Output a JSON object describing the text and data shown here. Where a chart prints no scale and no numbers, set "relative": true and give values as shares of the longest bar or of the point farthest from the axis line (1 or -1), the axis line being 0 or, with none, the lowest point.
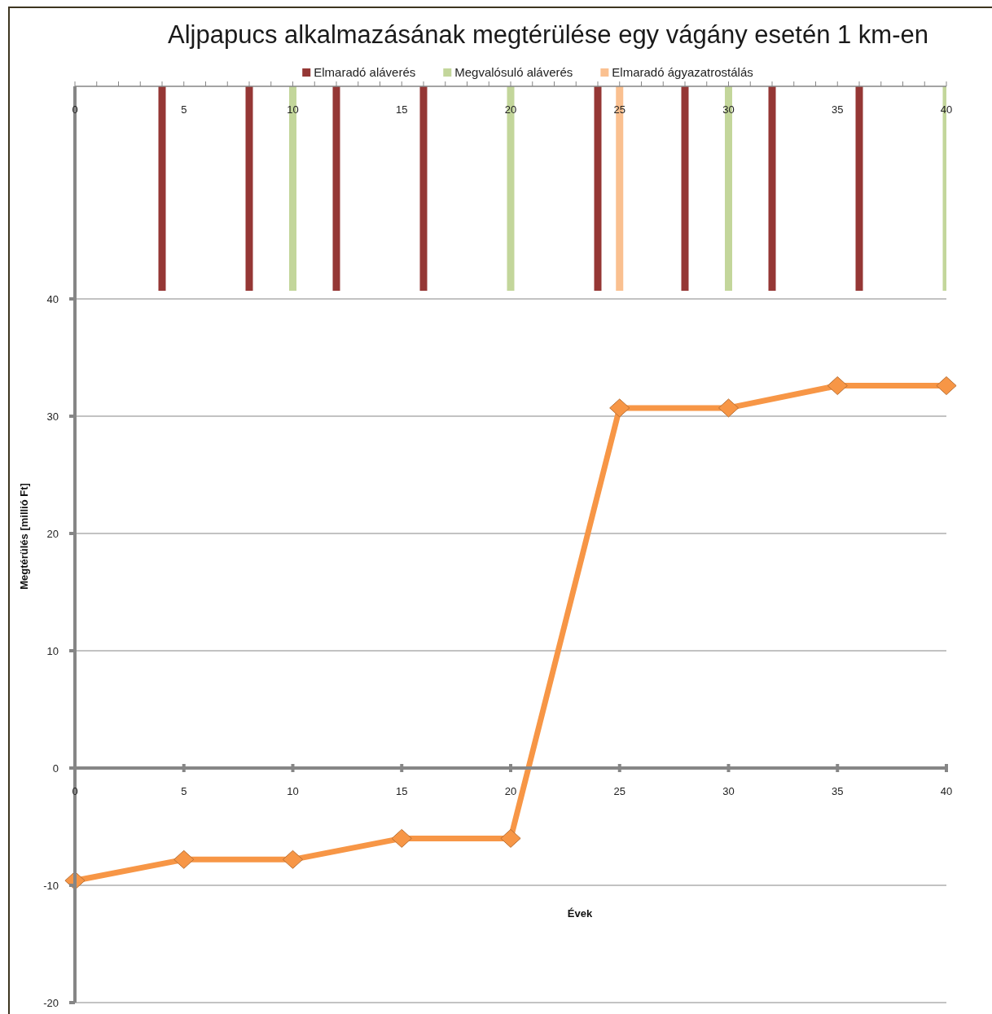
{
  "chart_data": [
    {
      "type": "bar",
      "title": "Aljpapucs alkalmazásának megtérülése egy vágány esetén 1 km-en",
      "relative": true,
      "legend": "top",
      "xlim": [
        0,
        40
      ],
      "xticks": [
        0,
        {
          "value": 1,
          "label": null
        },
        {
          "value": 2,
          "label": null
        },
        {
          "value": 3,
          "label": null
        },
        {
          "value": 4,
          "label": null
        },
        5,
        {
          "value": 6,
          "label": null
        },
        {
          "value": 7,
          "label": null
        },
        {
          "value": 8,
          "label": null
        },
        {
          "value": 9,
          "label": null
        },
        10,
        {
          "value": 11,
          "label": null
        },
        {
          "value": 12,
          "label": null
        },
        {
          "value": 13,
          "label": null
        },
        {
          "value": 14,
          "label": null
        },
        15,
        {
          "value": 16,
          "label": null
        },
        {
          "value": 17,
          "label": null
        },
        {
          "value": 18,
          "label": null
        },
        {
          "value": 19,
          "label": null
        },
        20,
        {
          "value": 21,
          "label": null
        },
        {
          "value": 22,
          "label": null
        },
        {
          "value": 23,
          "label": null
        },
        {
          "value": 24,
          "label": null
        },
        25,
        {
          "value": 26,
          "label": null
        },
        {
          "value": 27,
          "label": null
        },
        {
          "value": 28,
          "label": null
        },
        {
          "value": 29,
          "label": null
        },
        30,
        {
          "value": 31,
          "label": null
        },
        {
          "value": 32,
          "label": null
        },
        {
          "value": 33,
          "label": null
        },
        {
          "value": 34,
          "label": null
        },
        35,
        {
          "value": 36,
          "label": null
        },
        {
          "value": 37,
          "label": null
        },
        {
          "value": 38,
          "label": null
        },
        {
          "value": 39,
          "label": null
        },
        40
      ],
      "series": [
        {
          "name": "Elmaradó aláverés",
          "color": "#953735",
          "x": [
            4,
            8,
            12,
            16,
            24,
            28,
            32,
            36
          ],
          "values": [
            1,
            1,
            1,
            1,
            1,
            1,
            1,
            1
          ]
        },
        {
          "name": "Megvalósuló aláverés",
          "color": "#c3d69b",
          "x": [
            10,
            20,
            30,
            40
          ],
          "values": [
            1,
            1,
            1,
            1
          ]
        },
        {
          "name": "Elmaradó ágyazatrostálás",
          "color": "#fac090",
          "x": [
            25
          ],
          "values": [
            1
          ]
        }
      ]
    },
    {
      "type": "line",
      "xlabel": "Évek",
      "ylabel": "Megtérülés [millió Ft]",
      "x": [
        0,
        5,
        10,
        15,
        20,
        25,
        30,
        35,
        40
      ],
      "xlim": [
        0,
        40
      ],
      "xticks": [
        0,
        5,
        10,
        15,
        20,
        25,
        30,
        35,
        40
      ],
      "ylim": [
        -20,
        40
      ],
      "yticks": [
        -20,
        -10,
        0,
        10,
        20,
        30,
        40
      ],
      "grid": "y",
      "marker": "diamond",
      "line_style": "solid",
      "series": [
        {
          "color": "#f79646",
          "values": [
            -9.6,
            -7.8,
            -7.8,
            -6,
            -6,
            30.7,
            30.7,
            32.6,
            32.6
          ]
        }
      ]
    }
  ]
}
